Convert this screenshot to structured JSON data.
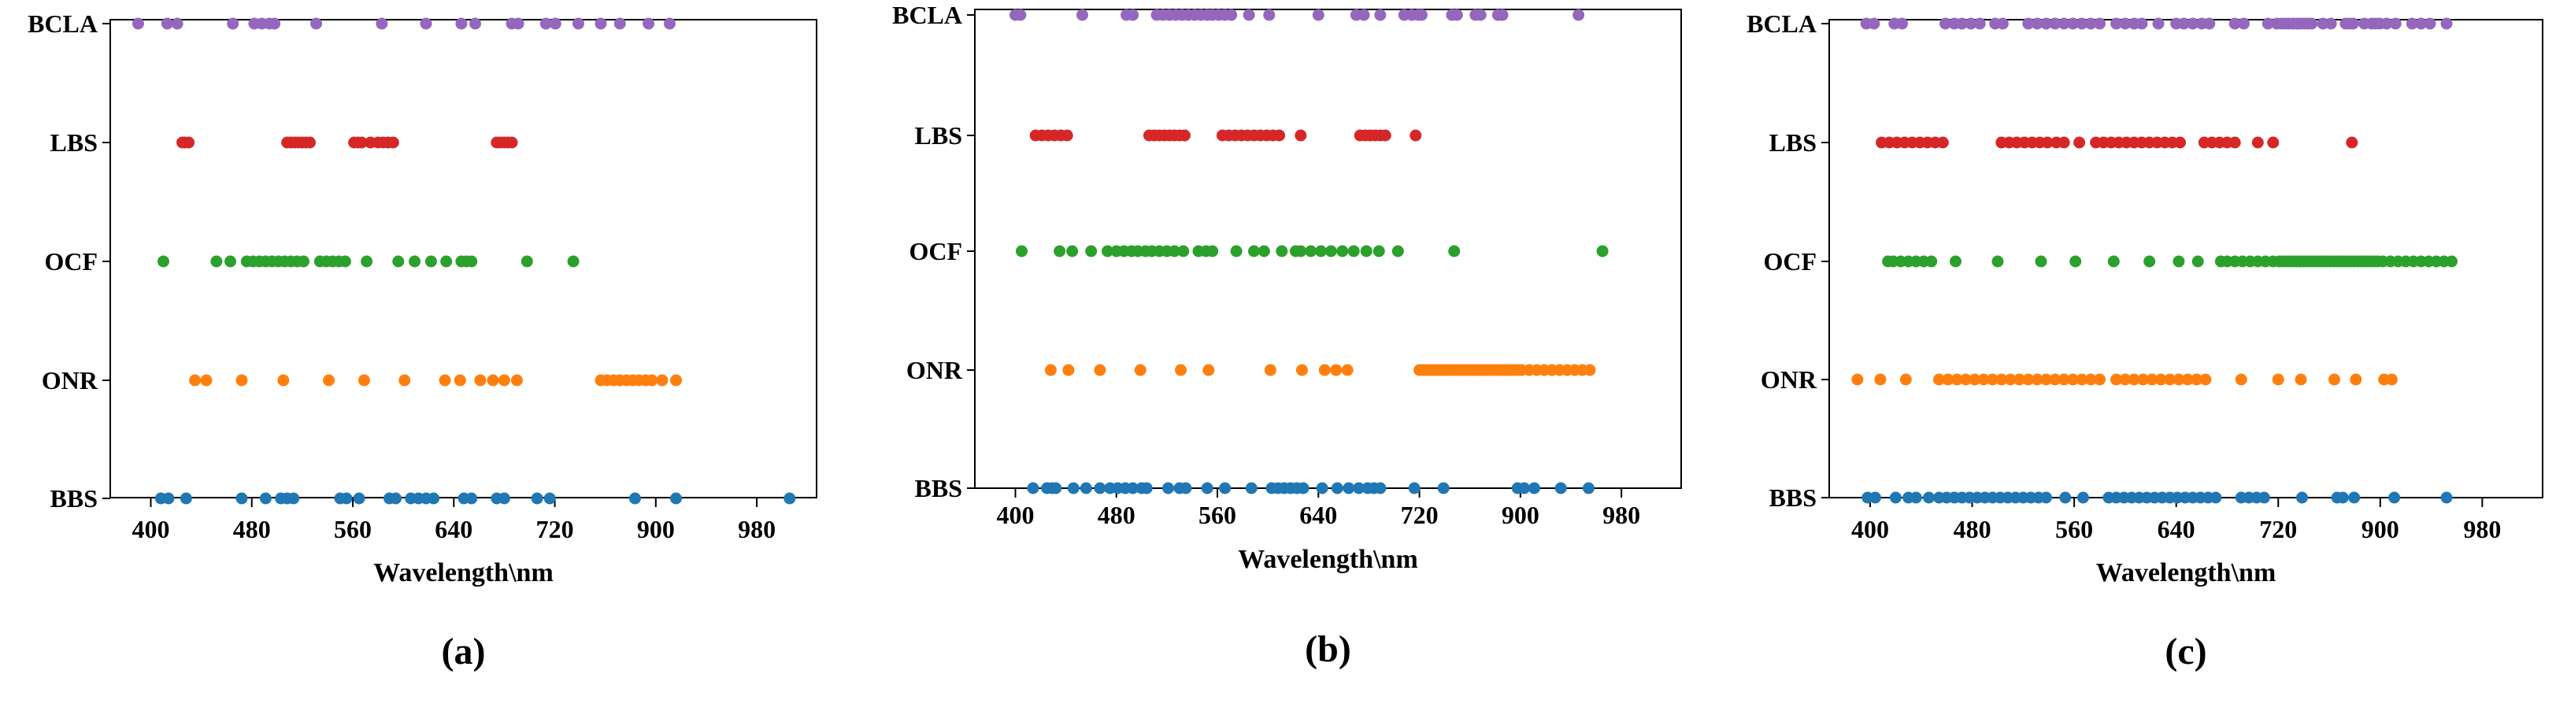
{
  "figure": {
    "xlabel": "Wavelength\\nm",
    "y_categories": [
      "BBS",
      "ONR",
      "OCF",
      "LBS",
      "BCLA"
    ],
    "x_ticks": [
      400,
      480,
      560,
      640,
      720,
      900,
      980
    ],
    "series_colors": {
      "BBS": "#1f77b4",
      "ONR": "#ff7f0e",
      "OCF": "#2ca02c",
      "LBS": "#d62728",
      "BCLA": "#9467bd"
    }
  },
  "chart_data": [
    {
      "type": "scatter",
      "panel_label": "(a)",
      "xlabel": "Wavelength\\nm",
      "ylabel": "",
      "categories": [
        "BBS",
        "ONR",
        "OCF",
        "LBS",
        "BCLA"
      ],
      "x_ticks": [
        400,
        480,
        560,
        640,
        720,
        900,
        980
      ],
      "series": [
        {
          "name": "BCLA",
          "values": [
            390,
            413,
            421,
            465,
            482,
            488,
            494,
            498,
            531,
            583,
            618,
            646,
            657,
            686,
            691,
            713,
            721,
            762,
            802,
            836,
            887,
            911
          ]
        },
        {
          "name": "LBS",
          "values": [
            425,
            427,
            430,
            508,
            511,
            514,
            517,
            520,
            523,
            526,
            561,
            564,
            567,
            574,
            580,
            584,
            588,
            592,
            674,
            677,
            680,
            683,
            686
          ]
        },
        {
          "name": "OCF",
          "values": [
            410,
            452,
            463,
            476,
            481,
            486,
            491,
            496,
            501,
            506,
            511,
            516,
            521,
            534,
            539,
            544,
            549,
            554,
            571,
            596,
            609,
            622,
            634,
            646,
            650,
            654,
            698,
            753
          ]
        },
        {
          "name": "ONR",
          "values": [
            435,
            444,
            472,
            505,
            541,
            569,
            601,
            633,
            645,
            661,
            671,
            680,
            690,
            802,
            813,
            825,
            836,
            848,
            859,
            870,
            882,
            893,
            905,
            916
          ]
        },
        {
          "name": "BBS",
          "values": [
            408,
            414,
            428,
            472,
            491,
            503,
            508,
            513,
            550,
            555,
            565,
            589,
            594,
            606,
            612,
            618,
            624,
            648,
            654,
            674,
            680,
            706,
            716,
            863,
            916,
            1006
          ]
        }
      ]
    },
    {
      "type": "scatter",
      "panel_label": "(b)",
      "xlabel": "Wavelength\\nm",
      "ylabel": "",
      "categories": [
        "BBS",
        "ONR",
        "OCF",
        "LBS",
        "BCLA"
      ],
      "x_ticks": [
        400,
        480,
        560,
        640,
        720,
        900,
        980
      ],
      "series": [
        {
          "name": "BCLA",
          "values": [
            400,
            404,
            453,
            488,
            493,
            512,
            517,
            522,
            527,
            532,
            537,
            542,
            547,
            552,
            556,
            561,
            566,
            571,
            585,
            601,
            640,
            670,
            676,
            689,
            708,
            714,
            719,
            724,
            778,
            787,
            820,
            829,
            860,
            868,
            946
          ]
        },
        {
          "name": "LBS",
          "values": [
            416,
            421,
            426,
            431,
            436,
            441,
            506,
            510,
            514,
            518,
            522,
            526,
            530,
            534,
            534,
            564,
            569,
            574,
            579,
            584,
            589,
            594,
            599,
            604,
            609,
            626,
            673,
            677,
            681,
            685,
            689,
            693,
            717
          ]
        },
        {
          "name": "OCF",
          "values": [
            405,
            435,
            445,
            460,
            473,
            480,
            486,
            492,
            497,
            503,
            508,
            514,
            520,
            526,
            533,
            545,
            551,
            556,
            575,
            589,
            597,
            611,
            622,
            626,
            634,
            642,
            650,
            659,
            668,
            678,
            688,
            703,
            782,
            965
          ]
        },
        {
          "name": "ONR",
          "values": [
            428,
            442,
            467,
            499,
            531,
            553,
            602,
            627,
            645,
            654,
            663,
            720,
            727,
            733,
            739,
            745,
            751,
            757,
            763,
            769,
            775,
            781,
            787,
            793,
            799,
            805,
            811,
            817,
            823,
            829,
            835,
            841,
            847,
            853,
            859,
            865,
            871,
            877,
            883,
            889,
            895,
            901,
            907,
            913,
            919,
            925,
            931,
            937,
            943,
            949,
            955
          ]
        },
        {
          "name": "BBS",
          "values": [
            414,
            425,
            429,
            432,
            446,
            456,
            467,
            475,
            481,
            487,
            493,
            500,
            504,
            521,
            530,
            535,
            552,
            566,
            587,
            603,
            608,
            613,
            618,
            623,
            628,
            643,
            655,
            664,
            672,
            679,
            684,
            689,
            716,
            763,
            895,
            903,
            911,
            932,
            954
          ]
        }
      ]
    },
    {
      "type": "scatter",
      "panel_label": "(c)",
      "xlabel": "Wavelength\\nm",
      "ylabel": "",
      "categories": [
        "BBS",
        "ONR",
        "OCF",
        "LBS",
        "BCLA"
      ],
      "x_ticks": [
        400,
        480,
        560,
        640,
        720,
        900,
        980
      ],
      "series": [
        {
          "name": "BCLA",
          "values": [
            397,
            403,
            419,
            425,
            459,
            466,
            472,
            479,
            486,
            498,
            504,
            524,
            531,
            538,
            545,
            552,
            559,
            566,
            573,
            580,
            593,
            600,
            607,
            613,
            626,
            640,
            646,
            653,
            660,
            666,
            686,
            693,
            712,
            719,
            726,
            733,
            739,
            746,
            753,
            759,
            766,
            773,
            779,
            799,
            813,
            839,
            846,
            852,
            872,
            885,
            892,
            899,
            905,
            912,
            925,
            932,
            939,
            952
          ]
        },
        {
          "name": "LBS",
          "values": [
            409,
            415,
            421,
            427,
            433,
            439,
            445,
            451,
            457,
            503,
            509,
            515,
            521,
            527,
            533,
            539,
            546,
            552,
            564,
            577,
            583,
            589,
            595,
            601,
            607,
            613,
            619,
            625,
            631,
            637,
            643,
            662,
            668,
            674,
            680,
            686,
            704,
            716,
            850
          ]
        },
        {
          "name": "OCF",
          "values": [
            414,
            418,
            424,
            430,
            436,
            442,
            448,
            467,
            500,
            534,
            561,
            591,
            619,
            642,
            657,
            675,
            680,
            686,
            692,
            698,
            704,
            710,
            716,
            722,
            728,
            734,
            740,
            746,
            752,
            758,
            764,
            770,
            776,
            782,
            788,
            794,
            800,
            806,
            812,
            818,
            824,
            830,
            836,
            842,
            848,
            854,
            860,
            866,
            872,
            878,
            884,
            890,
            896,
            902,
            908,
            914,
            920,
            926,
            932,
            938,
            944,
            950,
            956
          ]
        },
        {
          "name": "ONR",
          "values": [
            390,
            408,
            428,
            454,
            461,
            468,
            475,
            482,
            489,
            496,
            503,
            510,
            517,
            524,
            531,
            538,
            545,
            552,
            559,
            566,
            573,
            580,
            593,
            600,
            607,
            614,
            621,
            628,
            635,
            642,
            649,
            656,
            663,
            691,
            720,
            760,
            819,
            857,
            903,
            909
          ]
        },
        {
          "name": "BBS",
          "values": [
            398,
            404,
            420,
            430,
            436,
            446,
            454,
            460,
            466,
            472,
            478,
            484,
            490,
            496,
            502,
            508,
            514,
            520,
            526,
            532,
            538,
            553,
            567,
            587,
            593,
            599,
            605,
            611,
            617,
            623,
            629,
            635,
            641,
            647,
            653,
            659,
            665,
            671,
            691,
            697,
            703,
            709,
            762,
            824,
            834,
            854,
            911,
            952
          ]
        }
      ]
    }
  ]
}
